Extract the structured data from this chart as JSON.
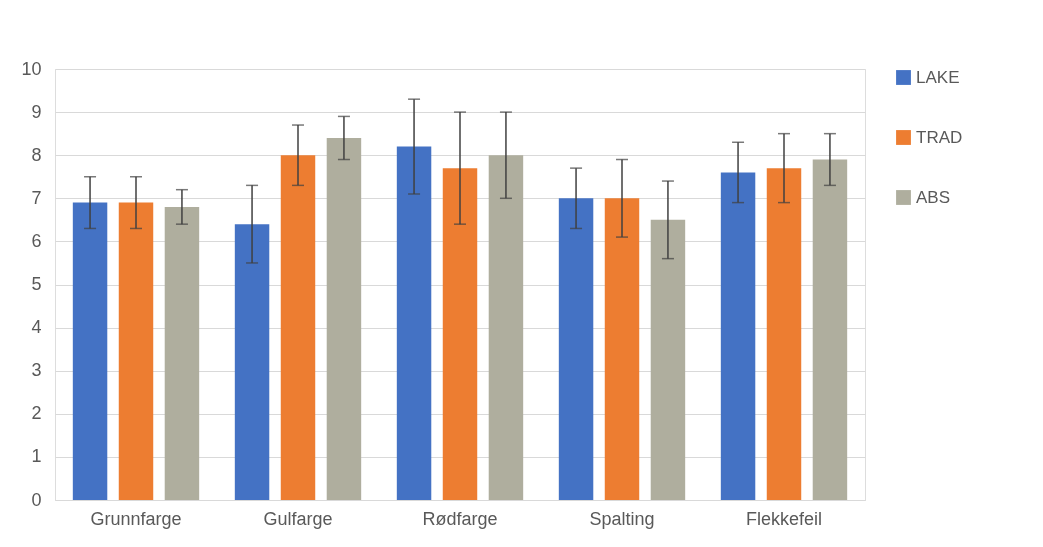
{
  "chart_data": {
    "type": "bar",
    "categories": [
      "Grunnfarge",
      "Gulfarge",
      "Rødfarge",
      "Spalting",
      "Flekkefeil"
    ],
    "series": [
      {
        "name": "LAKE",
        "color": "#4472c4",
        "values": [
          6.9,
          6.4,
          8.2,
          7.0,
          7.6
        ],
        "errors": [
          0.6,
          0.9,
          1.1,
          0.7,
          0.7
        ]
      },
      {
        "name": "TRAD",
        "color": "#ed7d31",
        "values": [
          6.9,
          8.0,
          7.7,
          7.0,
          7.7
        ],
        "errors": [
          0.6,
          0.7,
          1.3,
          0.9,
          0.8
        ]
      },
      {
        "name": "ABS",
        "color": "#afae9e",
        "values": [
          6.8,
          8.4,
          8.0,
          6.5,
          7.9
        ],
        "errors": [
          0.4,
          0.5,
          1.0,
          0.9,
          0.6
        ]
      }
    ],
    "ylim": [
      0,
      10
    ],
    "yticks": [
      0,
      1,
      2,
      3,
      4,
      5,
      6,
      7,
      8,
      9,
      10
    ],
    "grid": "y",
    "legend": "right"
  }
}
